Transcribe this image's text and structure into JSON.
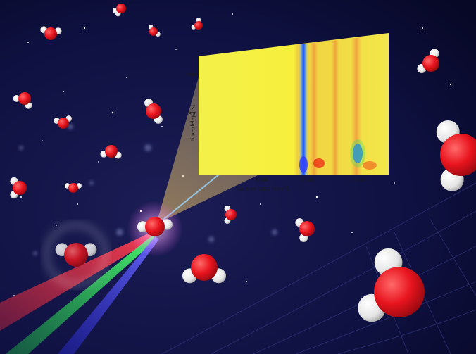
{
  "palette": {
    "background": "#0d0f3a",
    "oxygen": "#e8141e",
    "hydrogen": "#f2f2f2",
    "laser_red": "#ff2a3a",
    "laser_green": "#22e04a",
    "laser_blue": "#3a3aff",
    "spectrum_base": "#f0ee3a"
  },
  "inset": {
    "y_axis_label": "time delay [fs]",
    "y_ticks": [
      "1000",
      "500"
    ],
    "x_axis_label": "Raman shift [cm",
    "x_axis_label_sup": "-1",
    "x_axis_label_end": "]",
    "x_ticks": [
      "1500",
      "2500",
      "3500"
    ]
  }
}
